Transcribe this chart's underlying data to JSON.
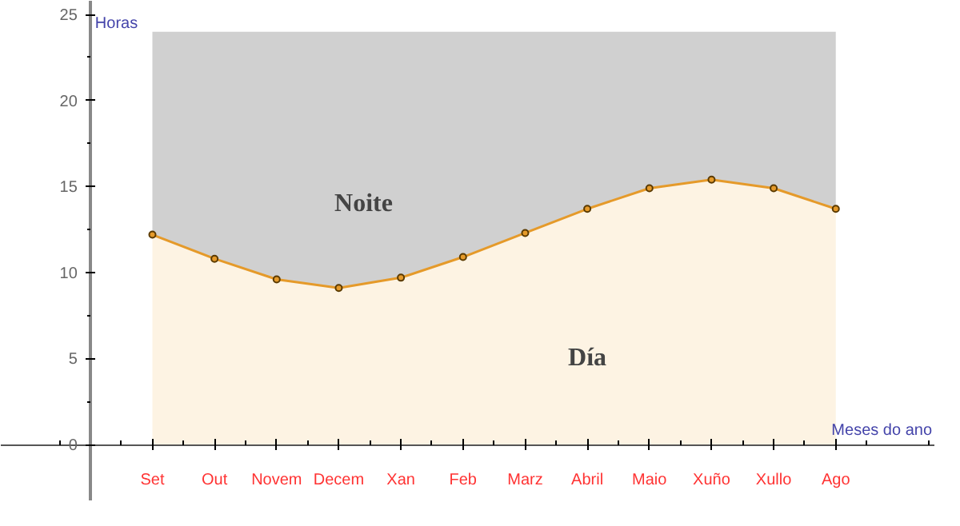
{
  "chart_data": {
    "type": "area",
    "stacked": true,
    "xlabel": "Meses do ano",
    "ylabel": "Horas",
    "categories": [
      "Set",
      "Out",
      "Novem",
      "Decem",
      "Xan",
      "Feb",
      "Marz",
      "Abril",
      "Maio",
      "Xuño",
      "Xullo",
      "Ago"
    ],
    "series": [
      {
        "name": "Día",
        "color": "#fdf3e3",
        "marker": "circle",
        "values": [
          12.2,
          10.8,
          9.6,
          9.1,
          9.7,
          10.9,
          12.3,
          13.7,
          14.9,
          15.4,
          14.9,
          13.7
        ]
      },
      {
        "name": "Noite",
        "color": "#d0d0d0",
        "values": [
          11.8,
          13.2,
          14.4,
          14.9,
          14.3,
          13.1,
          11.7,
          10.3,
          9.1,
          8.6,
          9.1,
          10.3
        ]
      }
    ],
    "ylim": [
      -3.3,
      25.8
    ],
    "yticks": [
      0,
      5,
      10,
      15,
      20,
      25
    ]
  }
}
